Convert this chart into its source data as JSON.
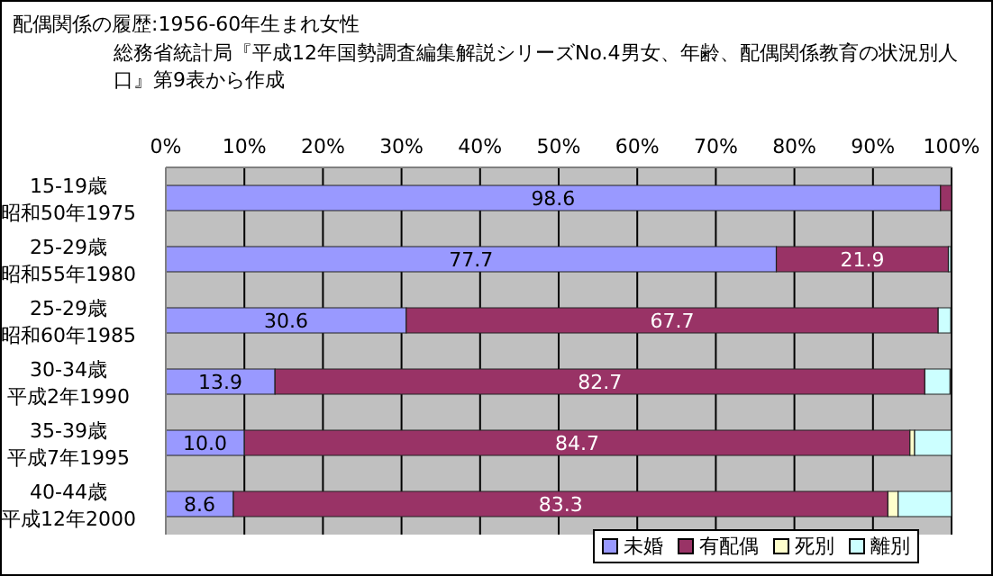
{
  "chart_data": {
    "type": "bar",
    "orientation": "horizontal",
    "stacked": true,
    "title": "配偶関係の履歴:1956-60年生まれ女性",
    "subtitle": "総務省統計局『平成12年国勢調査編集解説シリーズNo.4男女、年齢、配偶関係教育の状況別人口』第9表から作成",
    "categories": [
      "15-19歳昭和50年1975",
      "25-29歳昭和55年1980",
      "25-29歳昭和60年1985",
      "30-34歳平成2年1990",
      "35-39歳平成7年1995",
      "40-44歳平成12年2000"
    ],
    "series": [
      {
        "name": "未婚",
        "color": "#9999ff",
        "values": [
          98.6,
          77.7,
          30.6,
          13.9,
          10.0,
          8.6
        ],
        "value_labels": [
          "98.6",
          "77.7",
          "30.6",
          "13.9",
          "10.0",
          "8.6"
        ]
      },
      {
        "name": "有配偶",
        "color": "#993366",
        "values": [
          1.4,
          21.9,
          67.7,
          82.7,
          84.7,
          83.3
        ],
        "value_labels": [
          null,
          "21.9",
          "67.7",
          "82.7",
          "84.7",
          "83.3"
        ]
      },
      {
        "name": "死別",
        "color": "#ffffcc",
        "values": [
          0,
          null,
          null,
          null,
          0.6,
          1.3
        ]
      },
      {
        "name": "離別",
        "color": "#ccffff",
        "values": [
          0,
          0.3,
          1.6,
          3.2,
          4.7,
          6.8
        ]
      }
    ],
    "xlim": [
      0,
      100
    ],
    "xticks": [
      {
        "value": 0,
        "label": "0%"
      },
      {
        "value": 10,
        "label": "10%"
      },
      {
        "value": 20,
        "label": "20%"
      },
      {
        "value": 30,
        "label": "30%"
      },
      {
        "value": 40,
        "label": "40%"
      },
      {
        "value": 50,
        "label": "50%"
      },
      {
        "value": 60,
        "label": "60%"
      },
      {
        "value": 70,
        "label": "70%"
      },
      {
        "value": 80,
        "label": "80%"
      },
      {
        "value": 90,
        "label": "90%"
      },
      {
        "value": 100,
        "label": "100%"
      }
    ],
    "grid": "x",
    "legend": "bottom right"
  }
}
